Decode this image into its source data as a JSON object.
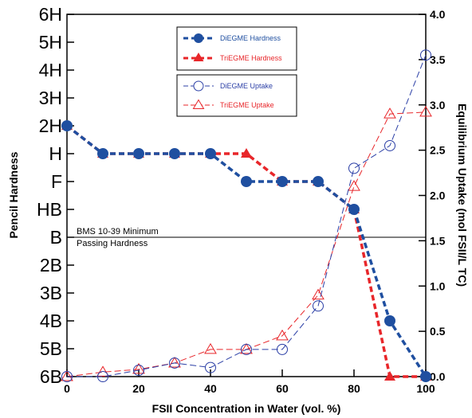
{
  "chart_data": {
    "type": "line",
    "title": "",
    "xlabel": "FSII Concentration in Water (vol. %)",
    "ylabel_left": "Pencil Hardness",
    "ylabel_right": "Equilibrium Uptake (mol FSII/L TC)",
    "xlim": [
      0,
      100
    ],
    "x_ticks": [
      "0",
      "20",
      "40",
      "60",
      "80",
      "100"
    ],
    "y_left_ticks": [
      "6B",
      "5B",
      "4B",
      "3B",
      "2B",
      "B",
      "HB",
      "F",
      "H",
      "2H",
      "3H",
      "4H",
      "5H",
      "6H"
    ],
    "ylim_right": [
      0.0,
      4.0
    ],
    "y_right_ticks": [
      "0.0",
      "0.5",
      "1.0",
      "1.5",
      "2.0",
      "2.5",
      "3.0",
      "3.5",
      "4.0"
    ],
    "grid": false,
    "reference_line": {
      "axis": "left",
      "value_index": 5,
      "label_line1": "BMS 10-39 Minimum",
      "label_line2": "Passing Hardness"
    },
    "series": [
      {
        "name": "DiEGME Hardness",
        "axis": "left",
        "color": "#1f4fa0",
        "marker": "circle-filled",
        "x": [
          0,
          10,
          20,
          30,
          40,
          50,
          60,
          70,
          80,
          90,
          100
        ],
        "y_index": [
          9,
          8,
          8,
          8,
          8,
          7,
          7,
          7,
          6,
          2,
          0
        ]
      },
      {
        "name": "TriEGME Hardness",
        "axis": "left",
        "color": "#e8262a",
        "marker": "triangle-filled",
        "x": [
          0,
          10,
          20,
          30,
          40,
          50,
          60,
          70,
          80,
          90,
          100
        ],
        "y_index": [
          9,
          8,
          8,
          8,
          8,
          8,
          7,
          7,
          6,
          0,
          0
        ]
      },
      {
        "name": "DiEGME Uptake",
        "axis": "right",
        "color": "#2b3fa6",
        "marker": "circle-open",
        "x": [
          0,
          10,
          20,
          30,
          40,
          50,
          60,
          70,
          80,
          90,
          100
        ],
        "y": [
          0.0,
          0.0,
          0.07,
          0.15,
          0.1,
          0.3,
          0.3,
          0.78,
          2.3,
          2.55,
          3.55
        ]
      },
      {
        "name": "TriEGME Uptake",
        "axis": "right",
        "color": "#e8262a",
        "marker": "triangle-open",
        "x": [
          0,
          10,
          20,
          30,
          40,
          50,
          60,
          70,
          80,
          90,
          100
        ],
        "y": [
          0.0,
          0.05,
          0.08,
          0.15,
          0.3,
          0.3,
          0.45,
          0.9,
          2.1,
          2.9,
          2.92
        ]
      }
    ],
    "legend": [
      {
        "group": "hardness",
        "entries": [
          "DiEGME Hardness",
          "TriEGME Hardness"
        ],
        "placement": "top-center"
      },
      {
        "group": "uptake",
        "entries": [
          "DiEGME Uptake",
          "TriEGME Uptake"
        ],
        "placement": "top-center"
      }
    ]
  }
}
